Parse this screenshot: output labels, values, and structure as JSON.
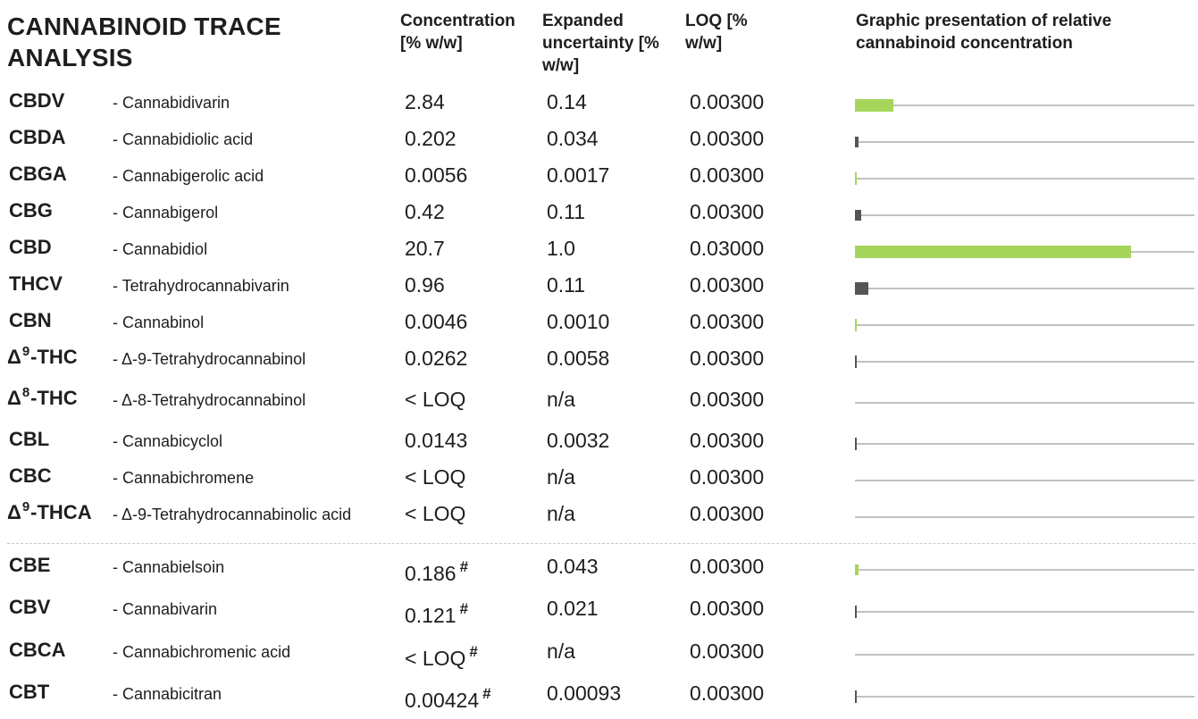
{
  "title": "CANNABINOID TRACE ANALYSIS",
  "headers": {
    "concentration": "Concentration [% w/w]",
    "uncertainty": "Expanded uncertainty [% w/w]",
    "loq": "LOQ [% w/w]",
    "graphic": "Graphic presentation of relative cannabinoid concentration"
  },
  "colors": {
    "positive": "#a6d55b",
    "low": "#555555",
    "track": "#c2c2c2"
  },
  "rows": [
    {
      "abbr_pre": "",
      "abbr_sup": "",
      "abbr_main": "CBDV",
      "name": "- Cannabidivarin",
      "concentration": "2.84",
      "mark": "",
      "uncertainty": "0.14",
      "loq": "0.00300",
      "bar": {
        "length": 43,
        "color": "positive"
      }
    },
    {
      "abbr_pre": "",
      "abbr_sup": "",
      "abbr_main": "CBDA",
      "name": "- Cannabidiolic acid",
      "concentration": "0.202",
      "mark": "",
      "uncertainty": "0.034",
      "loq": "0.00300",
      "bar": {
        "length": 4,
        "color": "low"
      }
    },
    {
      "abbr_pre": "",
      "abbr_sup": "",
      "abbr_main": "CBGA",
      "name": "- Cannabigerolic acid",
      "concentration": "0.0056",
      "mark": "",
      "uncertainty": "0.0017",
      "loq": "0.00300",
      "bar": {
        "length": 2,
        "color": "positive"
      }
    },
    {
      "abbr_pre": "",
      "abbr_sup": "",
      "abbr_main": "CBG",
      "name": "- Cannabigerol",
      "concentration": "0.42",
      "mark": "",
      "uncertainty": "0.11",
      "loq": "0.00300",
      "bar": {
        "length": 7,
        "color": "low"
      }
    },
    {
      "abbr_pre": "",
      "abbr_sup": "",
      "abbr_main": "CBD",
      "name": "- Cannabidiol",
      "concentration": "20.7",
      "mark": "",
      "uncertainty": "1.0",
      "loq": "0.03000",
      "bar": {
        "length": 309,
        "color": "positive"
      }
    },
    {
      "abbr_pre": "",
      "abbr_sup": "",
      "abbr_main": "THCV",
      "name": "- Tetrahydrocannabivarin",
      "concentration": "0.96",
      "mark": "",
      "uncertainty": "0.11",
      "loq": "0.00300",
      "bar": {
        "length": 15,
        "color": "low"
      }
    },
    {
      "abbr_pre": "",
      "abbr_sup": "",
      "abbr_main": "CBN",
      "name": "- Cannabinol",
      "concentration": "0.0046",
      "mark": "",
      "uncertainty": "0.0010",
      "loq": "0.00300",
      "bar": {
        "length": 2,
        "color": "positive"
      }
    },
    {
      "abbr_pre": "Δ",
      "abbr_sup": "9",
      "abbr_main": "-THC",
      "name": "- Δ-9-Tetrahydrocannabinol",
      "concentration": "0.0262",
      "mark": "",
      "uncertainty": "0.0058",
      "loq": "0.00300",
      "bar": {
        "length": 2,
        "color": "low"
      }
    },
    {
      "abbr_pre": "Δ",
      "abbr_sup": "8",
      "abbr_main": "-THC",
      "name": "- Δ-8-Tetrahydrocannabinol",
      "concentration": "< LOQ",
      "mark": "",
      "uncertainty": "n/a",
      "loq": "0.00300",
      "bar": {
        "length": 0,
        "color": "low"
      }
    },
    {
      "abbr_pre": "",
      "abbr_sup": "",
      "abbr_main": "CBL",
      "name": "- Cannabicyclol",
      "concentration": "0.0143",
      "mark": "",
      "uncertainty": "0.0032",
      "loq": "0.00300",
      "bar": {
        "length": 2,
        "color": "low"
      }
    },
    {
      "abbr_pre": "",
      "abbr_sup": "",
      "abbr_main": "CBC",
      "name": "- Cannabichromene",
      "concentration": "< LOQ",
      "mark": "",
      "uncertainty": "n/a",
      "loq": "0.00300",
      "bar": {
        "length": 0,
        "color": "low"
      }
    },
    {
      "abbr_pre": "Δ",
      "abbr_sup": "9",
      "abbr_main": "-THCA",
      "name": "- Δ-9-Tetrahydrocannabinolic acid",
      "concentration": "< LOQ",
      "mark": "",
      "uncertainty": "n/a",
      "loq": "0.00300",
      "bar": {
        "length": 0,
        "color": "low"
      }
    },
    {
      "abbr_pre": "",
      "abbr_sup": "",
      "abbr_main": "CBE",
      "name": "- Cannabielsoin",
      "concentration": "0.186",
      "mark": "#",
      "uncertainty": "0.043",
      "loq": "0.00300",
      "bar": {
        "length": 4,
        "color": "positive"
      }
    },
    {
      "abbr_pre": "",
      "abbr_sup": "",
      "abbr_main": "CBV",
      "name": "- Cannabivarin",
      "concentration": "0.121",
      "mark": "#",
      "uncertainty": "0.021",
      "loq": "0.00300",
      "bar": {
        "length": 2,
        "color": "low"
      }
    },
    {
      "abbr_pre": "",
      "abbr_sup": "",
      "abbr_main": "CBCA",
      "name": "- Cannabichromenic acid",
      "concentration": "< LOQ",
      "mark": "#",
      "uncertainty": "n/a",
      "loq": "0.00300",
      "bar": {
        "length": 0,
        "color": "low"
      }
    },
    {
      "abbr_pre": "",
      "abbr_sup": "",
      "abbr_main": "CBT",
      "name": "- Cannabicitran",
      "concentration": "0.00424",
      "mark": "#",
      "uncertainty": "0.00093",
      "loq": "0.00300",
      "bar": {
        "length": 2,
        "color": "low"
      }
    }
  ]
}
